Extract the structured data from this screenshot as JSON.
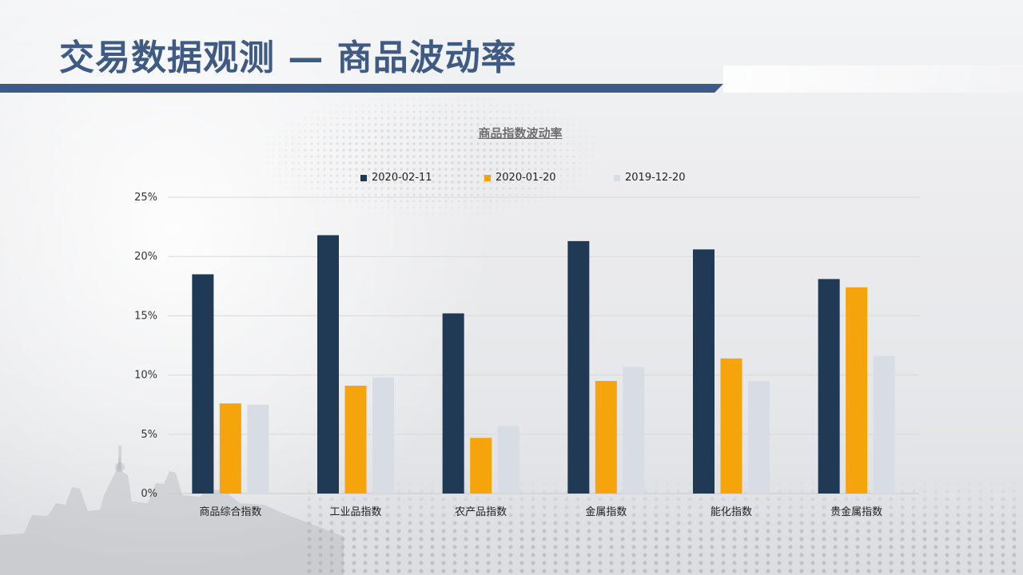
{
  "header": {
    "title": "交易数据观测 — 商品波动率"
  },
  "colors": {
    "accent": "#3e5a86",
    "title": "#3f5b83"
  },
  "chart_data": {
    "type": "bar",
    "title": "商品指数波动率",
    "categories": [
      "商品综合指数",
      "工业品指数",
      "农产品指数",
      "金属指数",
      "能化指数",
      "贵金属指数"
    ],
    "series": [
      {
        "name": "2020-02-11",
        "color": "#203a56",
        "values": [
          18.5,
          21.8,
          15.2,
          21.3,
          20.6,
          18.1
        ]
      },
      {
        "name": "2020-01-20",
        "color": "#f6a40c",
        "values": [
          7.6,
          9.1,
          4.7,
          9.5,
          11.4,
          17.4
        ]
      },
      {
        "name": "2019-12-20",
        "color": "#d8dde5",
        "values": [
          7.5,
          9.8,
          5.7,
          10.7,
          9.5,
          11.6
        ]
      }
    ],
    "yticks": [
      "0%",
      "5%",
      "10%",
      "15%",
      "20%",
      "25%"
    ],
    "ylim": [
      0,
      25
    ],
    "grid": true,
    "legend": "top"
  }
}
